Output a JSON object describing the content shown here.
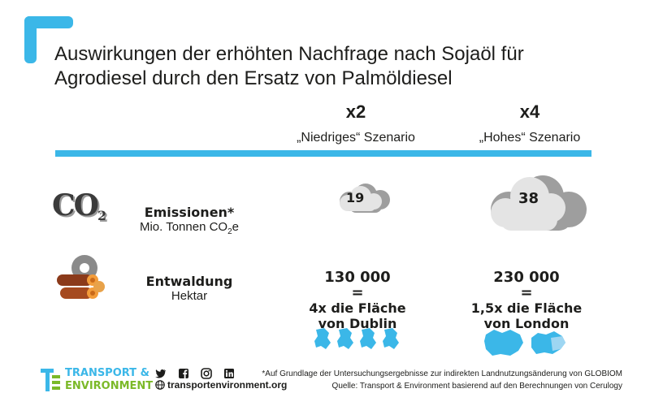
{
  "title_lines": [
    "Auswirkungen der erhöhten Nachfrage nach Sojaöl für",
    "Agrodiesel durch den Ersatz von Palmöldiesel"
  ],
  "scenarios": {
    "low": {
      "multiplier": "x2",
      "label": "„Niedriges“ Szenario"
    },
    "high": {
      "multiplier": "x4",
      "label": "„Hohes“ Szenario"
    }
  },
  "emissions": {
    "icon_text": "CO",
    "icon_sub": "2",
    "label": "Emissionen*",
    "unit_prefix": "Mio. Tonnen CO",
    "unit_sub": "2",
    "unit_suffix": "e",
    "low_value": "19",
    "high_value": "38"
  },
  "deforestation": {
    "label": "Entwaldung",
    "unit": "Hektar",
    "low": {
      "value": "130 000",
      "eq": "=",
      "line1": "4x die Fläche",
      "line2": "von Dublin"
    },
    "high": {
      "value": "230 000",
      "eq": "=",
      "line1": "1,5x die Fläche",
      "line2": "von London"
    }
  },
  "footer": {
    "brand_line1": "TRANSPORT &",
    "brand_line2": "ENVIRONMENT",
    "website": "transportenvironment.org",
    "footnote": "*Auf Grundlage der Untersuchungsergebnisse zur indirekten Landnutzungsänderung von GLOBIOM",
    "source": "Quelle: Transport & Environment basierend auf den Berechnungen von Cerulogy"
  },
  "colors": {
    "accent_blue": "#3bb7e8",
    "brand_green": "#7bb928",
    "cloud_light": "#e4e4e4",
    "cloud_dark": "#9e9e9e",
    "text": "#1d1d1b"
  },
  "icons": [
    "co2-icon",
    "cloud-icon",
    "logs-saw-icon",
    "dublin-map-icon",
    "london-map-icon",
    "twitter-icon",
    "facebook-icon",
    "instagram-icon",
    "linkedin-icon",
    "globe-icon"
  ]
}
